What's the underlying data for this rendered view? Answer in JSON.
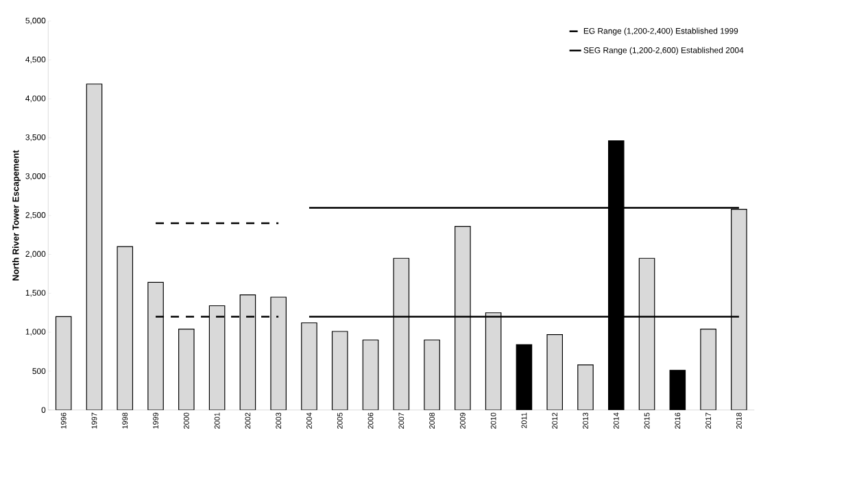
{
  "chart_data": {
    "type": "bar",
    "ylabel": "North River Tower Escapement",
    "categories": [
      "1996",
      "1997",
      "1998",
      "1999",
      "2000",
      "2001",
      "2002",
      "2003",
      "2004",
      "2005",
      "2006",
      "2007",
      "2008",
      "2009",
      "2010",
      "2011",
      "2012",
      "2013",
      "2014",
      "2015",
      "2016",
      "2017",
      "2018"
    ],
    "series": [
      {
        "values": [
          1200,
          4190,
          2100,
          1640,
          1040,
          1340,
          1480,
          1450,
          1120,
          1010,
          900,
          1950,
          900,
          2360,
          1250,
          840,
          970,
          580,
          3460,
          1950,
          510,
          1040,
          2580
        ],
        "colors": [
          "#d9d9d9",
          "#d9d9d9",
          "#d9d9d9",
          "#d9d9d9",
          "#d9d9d9",
          "#d9d9d9",
          "#d9d9d9",
          "#d9d9d9",
          "#d9d9d9",
          "#d9d9d9",
          "#d9d9d9",
          "#d9d9d9",
          "#d9d9d9",
          "#d9d9d9",
          "#d9d9d9",
          "#000000",
          "#d9d9d9",
          "#d9d9d9",
          "#000000",
          "#d9d9d9",
          "#000000",
          "#d9d9d9",
          "#d9d9d9"
        ]
      },
      {
        "type": "line",
        "name": "EG Range (1,200-2,400) Established 1999",
        "color": "#000000",
        "line_style": "dashed",
        "values": [
          null,
          null,
          null,
          2400,
          2400,
          2400,
          2400,
          2400,
          null,
          null,
          null,
          null,
          null,
          null,
          null,
          null,
          null,
          null,
          null,
          null,
          null,
          null,
          null
        ]
      },
      {
        "type": "line",
        "color": "#000000",
        "line_style": "dashed",
        "values": [
          null,
          null,
          null,
          1200,
          1200,
          1200,
          1200,
          1200,
          null,
          null,
          null,
          null,
          null,
          null,
          null,
          null,
          null,
          null,
          null,
          null,
          null,
          null,
          null
        ]
      },
      {
        "type": "line",
        "name": "SEG Range (1,200-2,600) Established 2004",
        "color": "#000000",
        "line_style": "solid",
        "values": [
          null,
          null,
          null,
          null,
          null,
          null,
          null,
          null,
          2600,
          2600,
          2600,
          2600,
          2600,
          2600,
          2600,
          2600,
          2600,
          2600,
          2600,
          2600,
          2600,
          2600,
          2600
        ]
      },
      {
        "type": "line",
        "color": "#000000",
        "line_style": "solid",
        "values": [
          null,
          null,
          null,
          null,
          null,
          null,
          null,
          null,
          1200,
          1200,
          1200,
          1200,
          1200,
          1200,
          1200,
          1200,
          1200,
          1200,
          1200,
          1200,
          1200,
          1200,
          1200
        ]
      }
    ],
    "ylim": [
      0,
      5000
    ],
    "yticks": [
      0,
      500,
      {
        "value": 1000,
        "label": "1,000"
      },
      {
        "value": 1500,
        "label": "1,500"
      },
      {
        "value": 2000,
        "label": "2,000"
      },
      {
        "value": 2500,
        "label": "2,500"
      },
      {
        "value": 3000,
        "label": "3,000"
      },
      {
        "value": 3500,
        "label": "3,500"
      },
      {
        "value": 4000,
        "label": "4,000"
      },
      {
        "value": 4500,
        "label": "4,500"
      },
      {
        "value": 5000,
        "label": "5,000"
      }
    ],
    "legend": "top right"
  }
}
